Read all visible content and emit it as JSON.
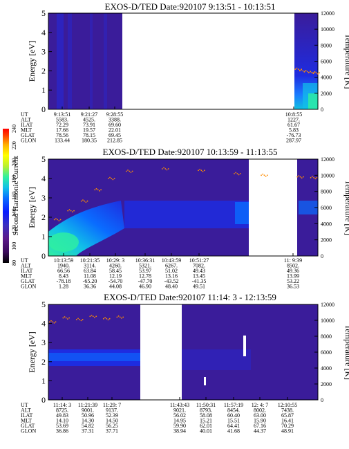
{
  "colorbar": {
    "label": "Second Harmonic Current",
    "ticks": [
      "80",
      "100",
      "120",
      "140",
      "160",
      "180",
      "200",
      "220",
      "240"
    ],
    "colors": [
      "#000000",
      "#3a0a5a",
      "#5b1a8a",
      "#3b2fc0",
      "#0a1cff",
      "#0a6cff",
      "#11c0e8",
      "#30f0a0",
      "#b8f030",
      "#ffff00",
      "#ffb000",
      "#ff4000",
      "#ff0000"
    ]
  },
  "panels": [
    {
      "title": "EXOS-D/TED   Date:920107   9:13:51 - 10:13:51",
      "ylabel_left": "Energy [eV]",
      "ylabel_right": "Temperature [K]",
      "left_ticks": [
        "0",
        "1",
        "2",
        "3",
        "4",
        "5"
      ],
      "right_ticks": [
        "0",
        "2000",
        "4000",
        "6000",
        "8000",
        "10000",
        "12000"
      ],
      "row_labels": [
        "UT",
        "ALT",
        "ILAT",
        "MLT",
        "GLAT",
        "GLON"
      ],
      "columns": [
        {
          "ut": "9:13:51",
          "alt": "5583.",
          "ilat": "72.29",
          "mlt": "17.66",
          "glat": "78.56",
          "glon": "133.44"
        },
        {
          "ut": "9:21:27",
          "alt": "4525.",
          "ilat": "73.91",
          "mlt": "19.57",
          "glat": "78.15",
          "glon": "180.35"
        },
        {
          "ut": "9:28:55",
          "alt": "3388.",
          "ilat": "69.60",
          "mlt": "22.01",
          "glat": "69.45",
          "glon": "212.85"
        },
        {
          "ut": "10:8:55",
          "alt": "1227.",
          "ilat": "61.67",
          "mlt": "5.83",
          "glat": "-76.73",
          "glon": "287.97"
        }
      ]
    },
    {
      "title": "EXOS-D/TED   Date:920107   10:13:59 - 11:13:55",
      "ylabel_left": "Energy [eV]",
      "ylabel_right": "Temperature [K]",
      "left_ticks": [
        "0",
        "1",
        "2",
        "3",
        "4",
        "5"
      ],
      "right_ticks": [
        "0",
        "2000",
        "4000",
        "6000",
        "8000",
        "10000",
        "12000"
      ],
      "row_labels": [
        "UT",
        "ALT",
        "ILAT",
        "MLT",
        "GLAT",
        "GLON"
      ],
      "columns": [
        {
          "ut": "10:13:59",
          "alt": "1940.",
          "ilat": "66.56",
          "mlt": "8.43",
          "glat": "-78.18",
          "glon": "1.28"
        },
        {
          "ut": "10:21:35",
          "alt": "3114.",
          "ilat": "63.84",
          "mlt": "11.08",
          "glat": "-65.20",
          "glon": "36.36"
        },
        {
          "ut": "10:29: 3",
          "alt": "4260.",
          "ilat": "58.45",
          "mlt": "12.19",
          "glat": "-54.70",
          "glon": "44.08"
        },
        {
          "ut": "10:36:31",
          "alt": "5321.",
          "ilat": "53.97",
          "mlt": "12.78",
          "glat": "-47.70",
          "glon": "46.90"
        },
        {
          "ut": "10:43:59",
          "alt": "6267.",
          "ilat": "51.02",
          "mlt": "13.16",
          "glat": "-43.52",
          "glon": "48.40"
        },
        {
          "ut": "10:51:27",
          "alt": "7082.",
          "ilat": "49.43",
          "mlt": "13.45",
          "glat": "-41.35",
          "glon": "49.51"
        },
        {
          "ut": "11: 9:39",
          "alt": "8502.",
          "ilat": "49.36",
          "mlt": "13.99",
          "glat": "53.22",
          "glon": "36.53"
        }
      ]
    },
    {
      "title": "EXOS-D/TED   Date:920107   11:14: 3 - 12:13:59",
      "ylabel_left": "Energy [eV]",
      "ylabel_right": "Temperature [K]",
      "left_ticks": [
        "0",
        "1",
        "2",
        "3",
        "4",
        "5"
      ],
      "right_ticks": [
        "0",
        "2000",
        "4000",
        "6000",
        "8000",
        "10000",
        "12000"
      ],
      "row_labels": [
        "UT",
        "ALT",
        "ILAT",
        "MLT",
        "GLAT",
        "GLON"
      ],
      "columns": [
        {
          "ut": "11:14: 3",
          "alt": "8725.",
          "ilat": "49.83",
          "mlt": "14.10",
          "glat": "53.69",
          "glon": "36.86"
        },
        {
          "ut": "11:21:39",
          "alt": "9001.",
          "ilat": "50.96",
          "mlt": "14.30",
          "glat": "54.82",
          "glon": "37.31"
        },
        {
          "ut": "11:29: 7",
          "alt": "9137.",
          "ilat": "52.39",
          "mlt": "14.50",
          "glat": "56.25",
          "glon": "37.71"
        },
        {
          "ut": "11:43:43",
          "alt": "9021.",
          "ilat": "56.02",
          "mlt": "14.95",
          "glat": "59.90",
          "glon": "38.94"
        },
        {
          "ut": "11:50:31",
          "alt": "8793.",
          "ilat": "58.08",
          "mlt": "15.21",
          "glat": "62.01",
          "glon": "40.01"
        },
        {
          "ut": "11:57:19",
          "alt": "8454.",
          "ilat": "60.40",
          "mlt": "15.51",
          "glat": "64.41",
          "glon": "41.68"
        },
        {
          "ut": "12: 4: 7",
          "alt": "8002.",
          "ilat": "63.00",
          "mlt": "15.90",
          "glat": "67.16",
          "glon": "44.37"
        },
        {
          "ut": "12:10:55",
          "alt": "7438.",
          "ilat": "65.87",
          "mlt": "16.41",
          "glat": "70.29",
          "glon": "48.91"
        }
      ]
    }
  ],
  "chart_data": [
    {
      "type": "heatmap",
      "title": "EXOS-D/TED   Date:920107   9:13:51 - 10:13:51",
      "ylabel": "Energy [eV]",
      "ylim": [
        0,
        5
      ],
      "y2label": "Temperature [K]",
      "y2lim": [
        0,
        12000
      ],
      "time_range": [
        "9:13:51",
        "10:13:51"
      ],
      "data_gaps": [
        [
          "9:28:55",
          "10:8:55"
        ]
      ],
      "color_scale": {
        "label": "Second Harmonic Current",
        "range": [
          80,
          240
        ]
      },
      "series": [
        {
          "name": "Temperature [K]",
          "x": [
            "10:9:30",
            "10:10:30",
            "10:11:30",
            "10:12:30",
            "10:13:30"
          ],
          "values": [
            5000,
            4800,
            4700,
            4600,
            4550
          ]
        }
      ]
    },
    {
      "type": "heatmap",
      "title": "EXOS-D/TED   Date:920107   10:13:59 - 11:13:55",
      "ylabel": "Energy [eV]",
      "ylim": [
        0,
        5
      ],
      "y2label": "Temperature [K]",
      "y2lim": [
        0,
        12000
      ],
      "time_range": [
        "10:13:59",
        "11:13:55"
      ],
      "data_gaps": [
        [
          "11:3:30",
          "11:9:10"
        ]
      ],
      "color_scale": {
        "label": "Second Harmonic Current",
        "range": [
          80,
          240
        ]
      },
      "series": [
        {
          "name": "Temperature [K]",
          "x": [
            "10:16:00",
            "10:19:00",
            "10:22:00",
            "10:25:00",
            "10:28:00",
            "10:32:00",
            "10:40:00",
            "10:48:00",
            "10:56:00",
            "11:02:00",
            "11:10:00",
            "11:13:00"
          ],
          "values": [
            4500,
            5600,
            6800,
            8200,
            9600,
            10500,
            10800,
            10600,
            10200,
            10000,
            9800,
            9700
          ]
        }
      ]
    },
    {
      "type": "heatmap",
      "title": "EXOS-D/TED   Date:920107   11:14: 3 - 12:13:59",
      "ylabel": "Energy [eV]",
      "ylim": [
        0,
        5
      ],
      "y2label": "Temperature [K]",
      "y2lim": [
        0,
        12000
      ],
      "time_range": [
        "11:14: 3",
        "12:13:59"
      ],
      "data_gaps": [
        [
          "11:33:00",
          "11:41:00"
        ]
      ],
      "color_scale": {
        "label": "Second Harmonic Current",
        "range": [
          80,
          240
        ]
      },
      "series": [
        {
          "name": "Temperature [K]",
          "x": [
            "11:15:00",
            "11:18:00",
            "11:21:00",
            "11:24:00",
            "11:27:00",
            "11:30:00"
          ],
          "values": [
            9800,
            10300,
            10100,
            10500,
            10200,
            10400
          ]
        }
      ]
    }
  ]
}
